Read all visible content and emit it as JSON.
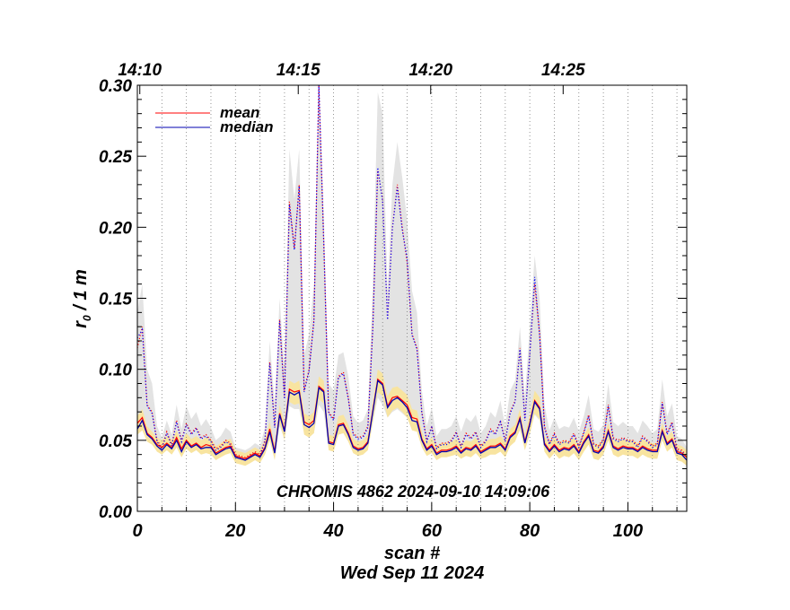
{
  "chart_data": {
    "type": "line",
    "title": "",
    "annotation": "CHROMIS 4862 2024-09-10 14:09:06",
    "xlabel": "scan #",
    "xlabel2": "Wed Sep 11 2024",
    "ylabel_main": "r",
    "ylabel_sub": "0",
    "ylabel_rest": " / 1 m",
    "xlim": [
      0,
      112
    ],
    "ylim": [
      0.0,
      0.3
    ],
    "x_ticks": [
      0,
      20,
      40,
      60,
      80,
      100
    ],
    "y_ticks": [
      "0.00",
      "0.05",
      "0.10",
      "0.15",
      "0.20",
      "0.25",
      "0.30"
    ],
    "top_axis_ticks": [
      {
        "label": "14:10",
        "x": 0.5
      },
      {
        "label": "14:15",
        "x": 32.8
      },
      {
        "label": "14:20",
        "x": 59.8
      },
      {
        "label": "14:25",
        "x": 86.8
      }
    ],
    "vertical_gridlines_x": [
      5,
      10,
      15,
      20,
      25,
      30,
      35,
      40,
      45,
      50,
      55,
      60,
      65,
      70,
      75,
      80,
      85,
      90,
      95,
      100,
      105,
      110
    ],
    "grid": "dotted vertical",
    "legend_position": "top-left",
    "series": [
      {
        "name": "mean",
        "color": "#ff0000",
        "role": "full-field solid line",
        "values": [
          0.062,
          0.066,
          0.055,
          0.052,
          0.047,
          0.045,
          0.048,
          0.045,
          0.052,
          0.044,
          0.05,
          0.046,
          0.048,
          0.045,
          0.047,
          0.046,
          0.041,
          0.043,
          0.045,
          0.046,
          0.039,
          0.038,
          0.037,
          0.039,
          0.041,
          0.039,
          0.045,
          0.058,
          0.042,
          0.069,
          0.057,
          0.086,
          0.084,
          0.085,
          0.063,
          0.061,
          0.064,
          0.088,
          0.085,
          0.049,
          0.048,
          0.061,
          0.062,
          0.055,
          0.046,
          0.044,
          0.045,
          0.049,
          0.071,
          0.093,
          0.09,
          0.074,
          0.08,
          0.081,
          0.078,
          0.075,
          0.066,
          0.065,
          0.051,
          0.044,
          0.047,
          0.041,
          0.043,
          0.043,
          0.044,
          0.046,
          0.042,
          0.045,
          0.044,
          0.047,
          0.042,
          0.044,
          0.046,
          0.046,
          0.048,
          0.044,
          0.053,
          0.056,
          0.066,
          0.049,
          0.062,
          0.078,
          0.073,
          0.048,
          0.043,
          0.047,
          0.043,
          0.045,
          0.044,
          0.047,
          0.042,
          0.049,
          0.054,
          0.043,
          0.042,
          0.046,
          0.057,
          0.046,
          0.044,
          0.046,
          0.045,
          0.045,
          0.043,
          0.046,
          0.044,
          0.043,
          0.043,
          0.057,
          0.048,
          0.051,
          0.042,
          0.041,
          0.038
        ]
      },
      {
        "name": "median",
        "color": "#0000b0",
        "role": "full-field solid line",
        "values": [
          0.058,
          0.064,
          0.054,
          0.051,
          0.046,
          0.043,
          0.047,
          0.044,
          0.05,
          0.042,
          0.049,
          0.045,
          0.047,
          0.044,
          0.045,
          0.045,
          0.04,
          0.042,
          0.044,
          0.045,
          0.038,
          0.037,
          0.036,
          0.038,
          0.04,
          0.038,
          0.044,
          0.056,
          0.041,
          0.068,
          0.056,
          0.084,
          0.082,
          0.084,
          0.061,
          0.059,
          0.062,
          0.087,
          0.084,
          0.048,
          0.047,
          0.06,
          0.061,
          0.054,
          0.045,
          0.043,
          0.044,
          0.048,
          0.07,
          0.092,
          0.089,
          0.073,
          0.078,
          0.08,
          0.077,
          0.073,
          0.064,
          0.063,
          0.05,
          0.043,
          0.046,
          0.04,
          0.042,
          0.042,
          0.043,
          0.045,
          0.041,
          0.044,
          0.043,
          0.046,
          0.041,
          0.043,
          0.045,
          0.045,
          0.047,
          0.043,
          0.052,
          0.055,
          0.065,
          0.048,
          0.061,
          0.077,
          0.072,
          0.047,
          0.042,
          0.046,
          0.042,
          0.044,
          0.043,
          0.046,
          0.041,
          0.048,
          0.053,
          0.042,
          0.041,
          0.045,
          0.056,
          0.045,
          0.043,
          0.045,
          0.044,
          0.044,
          0.042,
          0.045,
          0.043,
          0.042,
          0.042,
          0.056,
          0.047,
          0.05,
          0.041,
          0.04,
          0.036
        ]
      },
      {
        "role": "dotted mean (red)",
        "color": "#ff0000",
        "values": [
          0.115,
          0.13,
          0.075,
          0.07,
          0.05,
          0.045,
          0.056,
          0.047,
          0.064,
          0.05,
          0.062,
          0.055,
          0.059,
          0.052,
          0.054,
          0.05,
          0.044,
          0.046,
          0.05,
          0.048,
          0.04,
          0.039,
          0.038,
          0.04,
          0.042,
          0.04,
          0.05,
          0.105,
          0.06,
          0.135,
          0.08,
          0.218,
          0.185,
          0.23,
          0.085,
          0.1,
          0.135,
          0.3,
          0.19,
          0.07,
          0.065,
          0.095,
          0.098,
          0.08,
          0.055,
          0.052,
          0.053,
          0.06,
          0.13,
          0.24,
          0.22,
          0.135,
          0.2,
          0.23,
          0.2,
          0.175,
          0.125,
          0.115,
          0.07,
          0.05,
          0.06,
          0.045,
          0.048,
          0.048,
          0.05,
          0.056,
          0.046,
          0.055,
          0.052,
          0.056,
          0.046,
          0.05,
          0.058,
          0.055,
          0.064,
          0.05,
          0.07,
          0.078,
          0.115,
          0.065,
          0.11,
          0.16,
          0.125,
          0.06,
          0.048,
          0.055,
          0.048,
          0.05,
          0.049,
          0.055,
          0.046,
          0.056,
          0.068,
          0.048,
          0.046,
          0.051,
          0.075,
          0.052,
          0.05,
          0.052,
          0.05,
          0.05,
          0.046,
          0.053,
          0.05,
          0.046,
          0.048,
          0.077,
          0.055,
          0.063,
          0.044,
          0.043,
          0.039
        ]
      },
      {
        "role": "dotted median (blue)",
        "color": "#0000ff",
        "values": [
          0.122,
          0.128,
          0.074,
          0.069,
          0.049,
          0.044,
          0.055,
          0.046,
          0.063,
          0.049,
          0.061,
          0.054,
          0.058,
          0.051,
          0.053,
          0.049,
          0.043,
          0.045,
          0.049,
          0.047,
          0.039,
          0.038,
          0.037,
          0.039,
          0.041,
          0.039,
          0.049,
          0.104,
          0.059,
          0.134,
          0.079,
          0.216,
          0.184,
          0.229,
          0.084,
          0.099,
          0.134,
          0.31,
          0.19,
          0.069,
          0.064,
          0.094,
          0.097,
          0.079,
          0.054,
          0.051,
          0.052,
          0.059,
          0.129,
          0.242,
          0.218,
          0.135,
          0.199,
          0.228,
          0.198,
          0.178,
          0.124,
          0.114,
          0.069,
          0.049,
          0.059,
          0.044,
          0.047,
          0.047,
          0.049,
          0.055,
          0.045,
          0.054,
          0.051,
          0.055,
          0.045,
          0.049,
          0.057,
          0.054,
          0.063,
          0.049,
          0.069,
          0.077,
          0.114,
          0.064,
          0.11,
          0.165,
          0.124,
          0.059,
          0.047,
          0.054,
          0.047,
          0.049,
          0.048,
          0.054,
          0.045,
          0.055,
          0.067,
          0.047,
          0.045,
          0.05,
          0.074,
          0.051,
          0.049,
          0.051,
          0.049,
          0.049,
          0.045,
          0.052,
          0.049,
          0.045,
          0.047,
          0.076,
          0.054,
          0.062,
          0.043,
          0.042,
          0.038
        ]
      }
    ],
    "bands": [
      {
        "role": "grey range",
        "color": "#e3e3e3",
        "upper": [
          0.14,
          0.16,
          0.1,
          0.09,
          0.06,
          0.052,
          0.064,
          0.054,
          0.075,
          0.058,
          0.074,
          0.065,
          0.07,
          0.06,
          0.065,
          0.059,
          0.05,
          0.053,
          0.059,
          0.056,
          0.045,
          0.044,
          0.043,
          0.045,
          0.048,
          0.046,
          0.059,
          0.12,
          0.075,
          0.15,
          0.1,
          0.255,
          0.22,
          0.255,
          0.11,
          0.125,
          0.16,
          0.3,
          0.21,
          0.09,
          0.085,
          0.11,
          0.112,
          0.095,
          0.067,
          0.062,
          0.064,
          0.072,
          0.16,
          0.295,
          0.28,
          0.155,
          0.23,
          0.26,
          0.235,
          0.205,
          0.155,
          0.14,
          0.085,
          0.06,
          0.073,
          0.053,
          0.058,
          0.058,
          0.06,
          0.067,
          0.056,
          0.066,
          0.063,
          0.068,
          0.055,
          0.06,
          0.07,
          0.066,
          0.078,
          0.06,
          0.085,
          0.092,
          0.13,
          0.08,
          0.13,
          0.18,
          0.15,
          0.075,
          0.057,
          0.066,
          0.058,
          0.06,
          0.059,
          0.066,
          0.056,
          0.067,
          0.082,
          0.058,
          0.056,
          0.061,
          0.09,
          0.063,
          0.06,
          0.063,
          0.06,
          0.06,
          0.055,
          0.064,
          0.06,
          0.055,
          0.058,
          0.093,
          0.067,
          0.076,
          0.053,
          0.051,
          0.045
        ],
        "lower": [
          0.055,
          0.058,
          0.05,
          0.048,
          0.044,
          0.04,
          0.044,
          0.042,
          0.046,
          0.04,
          0.045,
          0.043,
          0.044,
          0.041,
          0.042,
          0.042,
          0.037,
          0.039,
          0.041,
          0.042,
          0.036,
          0.035,
          0.034,
          0.035,
          0.037,
          0.036,
          0.04,
          0.052,
          0.039,
          0.06,
          0.051,
          0.074,
          0.072,
          0.072,
          0.055,
          0.053,
          0.055,
          0.075,
          0.07,
          0.044,
          0.044,
          0.054,
          0.055,
          0.05,
          0.042,
          0.04,
          0.041,
          0.044,
          0.062,
          0.08,
          0.075,
          0.066,
          0.07,
          0.072,
          0.069,
          0.066,
          0.058,
          0.057,
          0.047,
          0.04,
          0.043,
          0.037,
          0.04,
          0.04,
          0.04,
          0.042,
          0.038,
          0.041,
          0.04,
          0.043,
          0.038,
          0.04,
          0.042,
          0.042,
          0.043,
          0.04,
          0.047,
          0.05,
          0.057,
          0.045,
          0.055,
          0.068,
          0.064,
          0.044,
          0.039,
          0.043,
          0.039,
          0.041,
          0.04,
          0.043,
          0.038,
          0.044,
          0.048,
          0.039,
          0.038,
          0.042,
          0.05,
          0.042,
          0.04,
          0.042,
          0.041,
          0.041,
          0.039,
          0.042,
          0.04,
          0.039,
          0.039,
          0.05,
          0.044,
          0.046,
          0.038,
          0.037,
          0.034
        ]
      },
      {
        "role": "yellow range",
        "color": "#f8e4a0",
        "upper": [
          0.067,
          0.072,
          0.06,
          0.056,
          0.052,
          0.05,
          0.053,
          0.05,
          0.057,
          0.049,
          0.055,
          0.051,
          0.053,
          0.05,
          0.052,
          0.051,
          0.046,
          0.048,
          0.05,
          0.051,
          0.043,
          0.042,
          0.041,
          0.043,
          0.045,
          0.043,
          0.05,
          0.063,
          0.047,
          0.075,
          0.063,
          0.092,
          0.09,
          0.092,
          0.069,
          0.067,
          0.07,
          0.095,
          0.092,
          0.054,
          0.053,
          0.067,
          0.068,
          0.061,
          0.051,
          0.049,
          0.05,
          0.054,
          0.077,
          0.1,
          0.097,
          0.081,
          0.087,
          0.088,
          0.085,
          0.082,
          0.072,
          0.071,
          0.056,
          0.049,
          0.052,
          0.046,
          0.048,
          0.048,
          0.049,
          0.051,
          0.047,
          0.05,
          0.049,
          0.052,
          0.047,
          0.049,
          0.051,
          0.051,
          0.053,
          0.049,
          0.058,
          0.061,
          0.072,
          0.054,
          0.068,
          0.085,
          0.08,
          0.053,
          0.048,
          0.052,
          0.048,
          0.05,
          0.049,
          0.052,
          0.047,
          0.054,
          0.059,
          0.048,
          0.047,
          0.051,
          0.062,
          0.051,
          0.049,
          0.051,
          0.05,
          0.05,
          0.048,
          0.051,
          0.049,
          0.048,
          0.048,
          0.062,
          0.053,
          0.056,
          0.047,
          0.046,
          0.043
        ],
        "lower": [
          0.054,
          0.057,
          0.049,
          0.047,
          0.042,
          0.04,
          0.043,
          0.04,
          0.045,
          0.038,
          0.044,
          0.041,
          0.043,
          0.04,
          0.041,
          0.04,
          0.036,
          0.038,
          0.04,
          0.041,
          0.034,
          0.033,
          0.032,
          0.034,
          0.036,
          0.034,
          0.04,
          0.05,
          0.036,
          0.062,
          0.05,
          0.077,
          0.075,
          0.076,
          0.054,
          0.052,
          0.055,
          0.079,
          0.076,
          0.043,
          0.042,
          0.054,
          0.055,
          0.049,
          0.041,
          0.039,
          0.04,
          0.043,
          0.063,
          0.084,
          0.081,
          0.066,
          0.071,
          0.073,
          0.07,
          0.066,
          0.057,
          0.056,
          0.045,
          0.039,
          0.041,
          0.036,
          0.038,
          0.038,
          0.039,
          0.04,
          0.037,
          0.039,
          0.038,
          0.041,
          0.037,
          0.038,
          0.04,
          0.04,
          0.042,
          0.038,
          0.046,
          0.049,
          0.058,
          0.043,
          0.054,
          0.069,
          0.065,
          0.042,
          0.037,
          0.041,
          0.037,
          0.039,
          0.038,
          0.041,
          0.036,
          0.042,
          0.047,
          0.037,
          0.036,
          0.04,
          0.05,
          0.04,
          0.038,
          0.04,
          0.039,
          0.039,
          0.037,
          0.04,
          0.038,
          0.037,
          0.037,
          0.05,
          0.042,
          0.045,
          0.036,
          0.035,
          0.032
        ]
      }
    ]
  }
}
